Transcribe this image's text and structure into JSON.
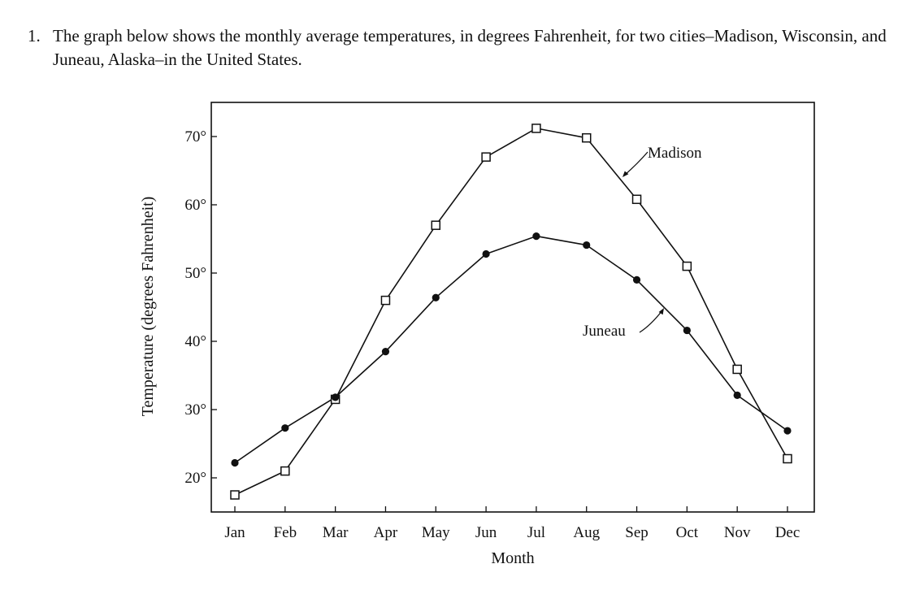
{
  "question": {
    "number": "1.",
    "text": "The graph below shows the monthly average temperatures, in degrees Fahrenheit, for two cities–Madison, Wisconsin, and Juneau, Alaska–in the United States."
  },
  "chart_data": {
    "type": "line",
    "title": "",
    "xlabel": "Month",
    "ylabel": "Temperature (degrees Fahrenheit)",
    "categories": [
      "Jan",
      "Feb",
      "Mar",
      "Apr",
      "May",
      "Jun",
      "Jul",
      "Aug",
      "Sep",
      "Oct",
      "Nov",
      "Dec"
    ],
    "ylim": [
      15,
      74
    ],
    "yticks": [
      20,
      30,
      40,
      50,
      60,
      70
    ],
    "ytick_labels": [
      "20°",
      "30°",
      "40°",
      "50°",
      "60°",
      "70°"
    ],
    "grid": false,
    "legend": "none (series labeled directly with arrows)",
    "series": [
      {
        "name": "Madison",
        "marker": "open-square",
        "values": [
          17.5,
          21,
          31.5,
          46,
          57,
          67,
          71.2,
          69.8,
          60.8,
          51,
          35.9,
          22.8
        ]
      },
      {
        "name": "Juneau",
        "marker": "filled-circle",
        "values": [
          22.2,
          27.3,
          31.8,
          38.5,
          46.4,
          52.8,
          55.4,
          54.1,
          49,
          41.6,
          32.1,
          26.9
        ]
      }
    ],
    "colors": {
      "line": "#111111",
      "frame": "#111111",
      "marker_fill_open": "#ffffff"
    }
  }
}
